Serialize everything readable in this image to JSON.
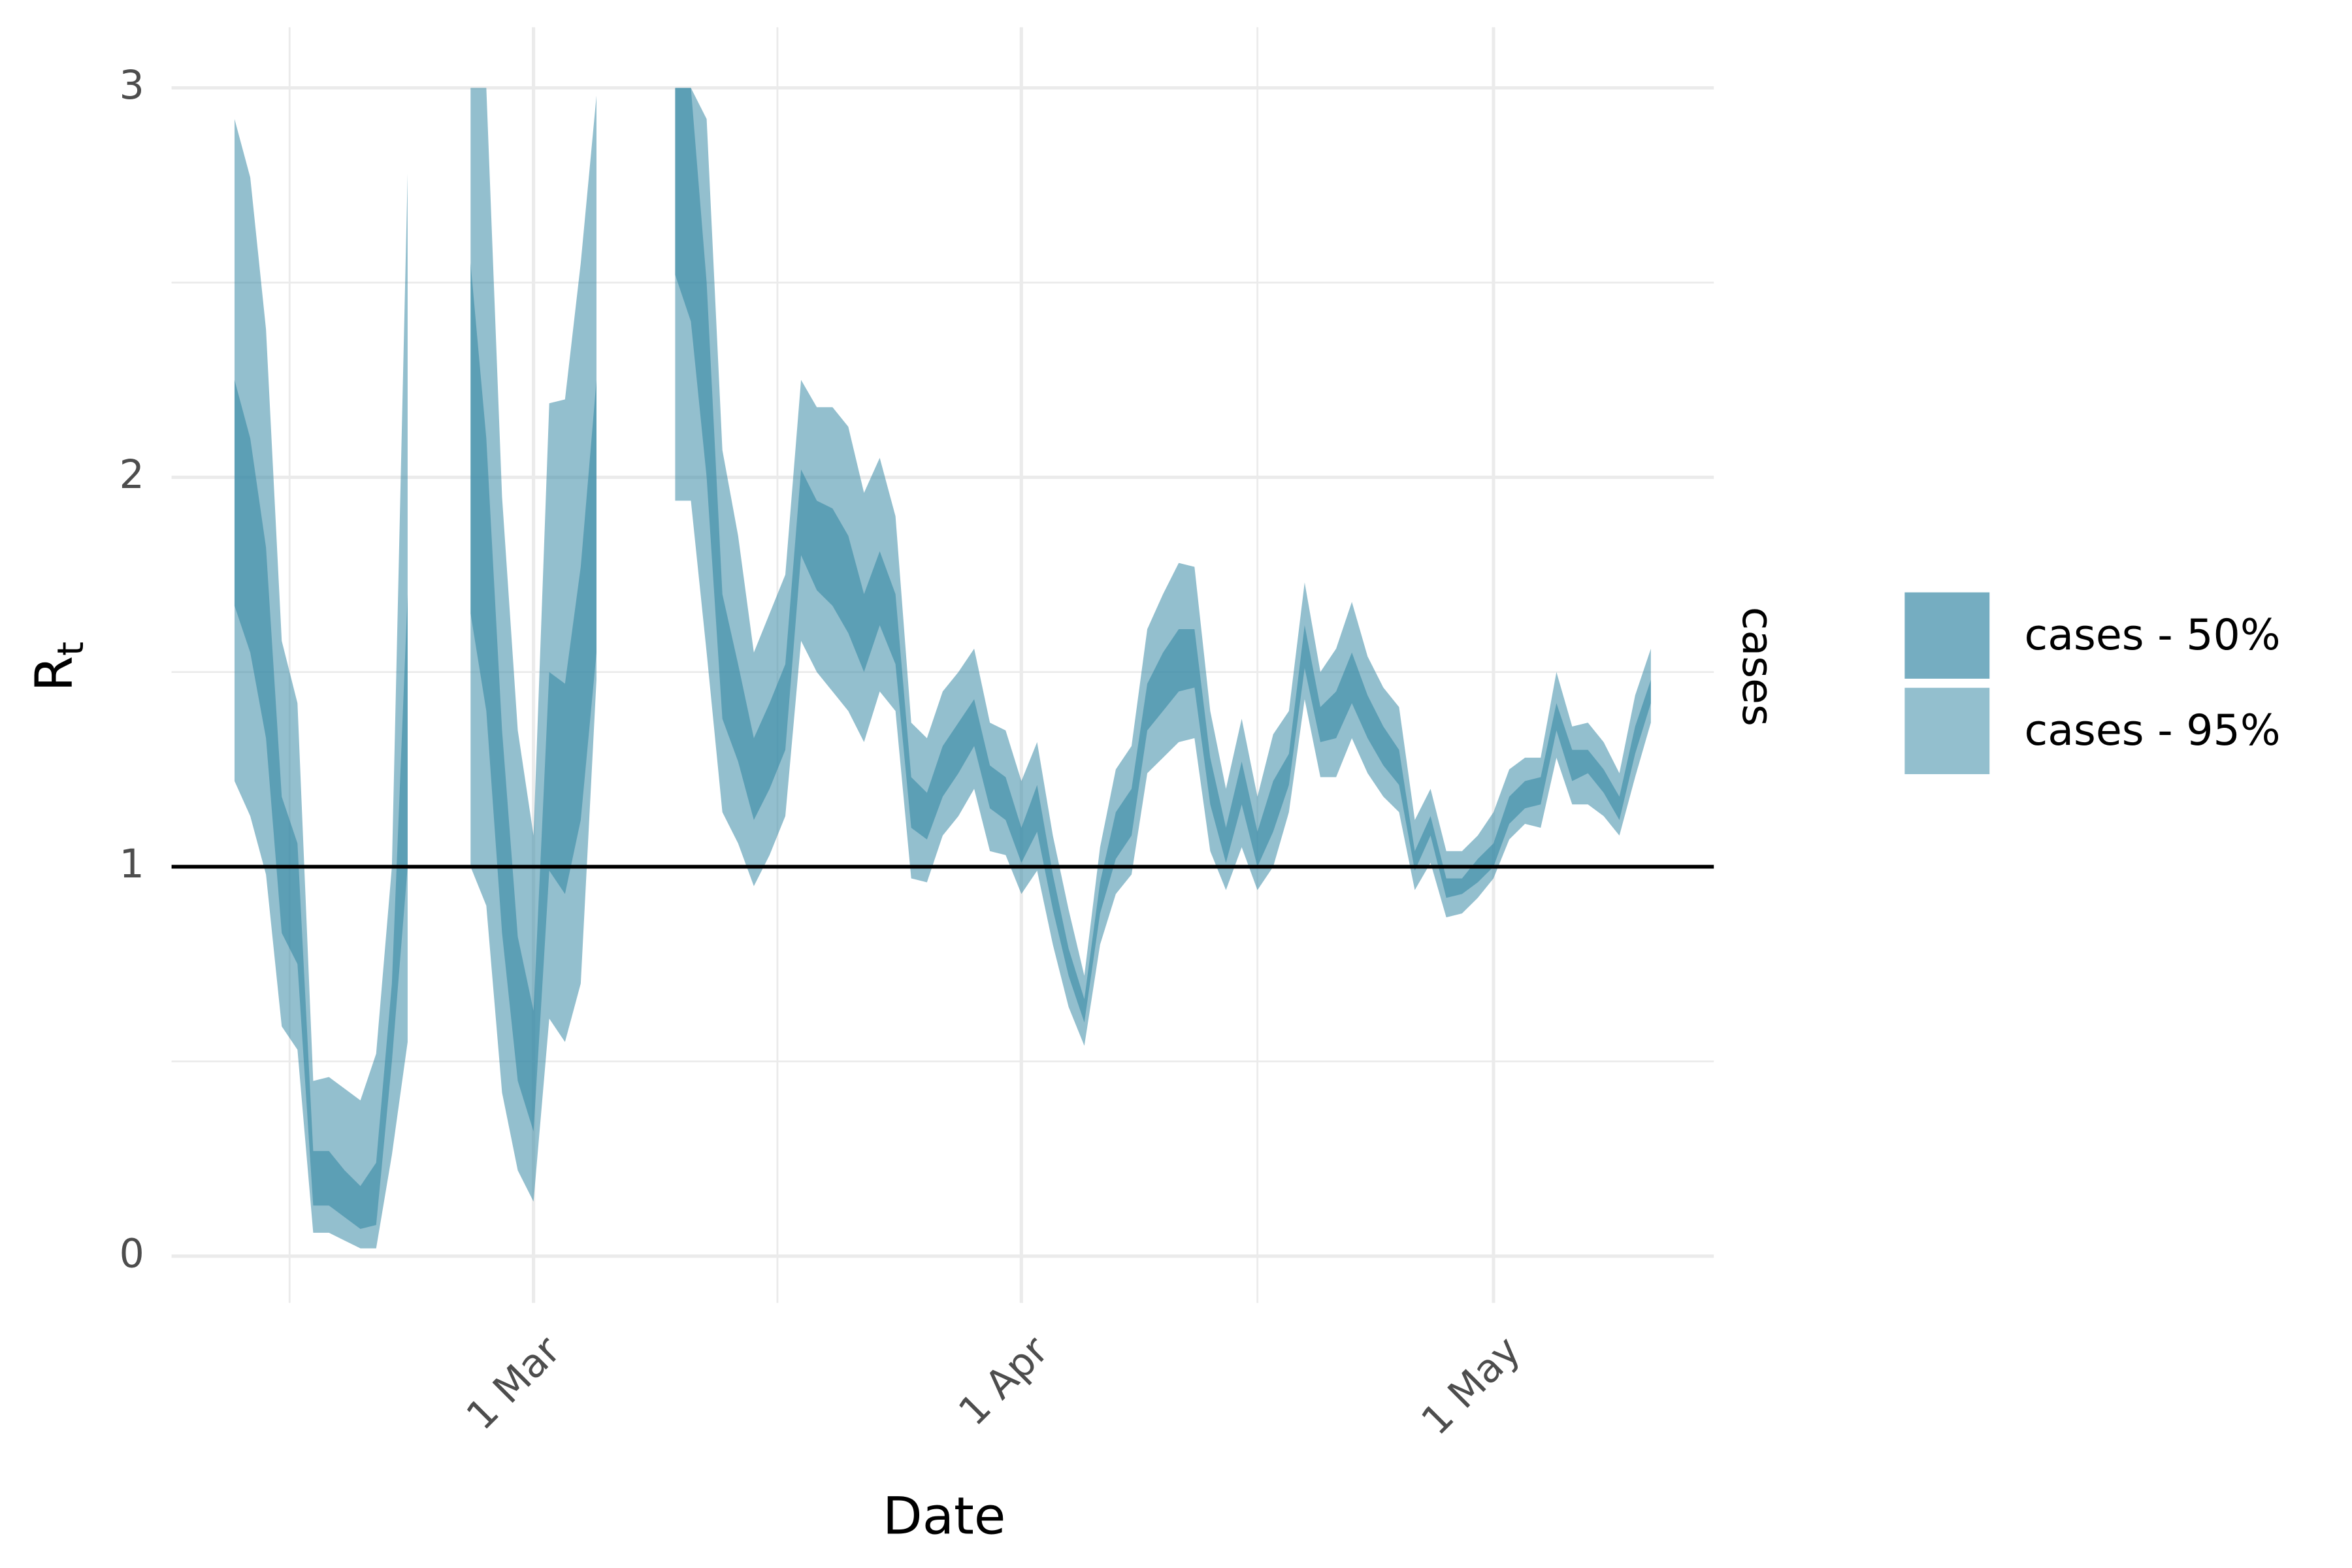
{
  "chart_data": {
    "type": "ribbon",
    "xlabel": "Date",
    "ylabel": "R",
    "ylabel_sub": "t",
    "strip": "cases",
    "xlim": [
      "6 Feb",
      "15 May"
    ],
    "xticks": [
      "1 Mar",
      "1 Apr",
      "1 May"
    ],
    "ylim": [
      -0.12,
      3
    ],
    "yticks": [
      0,
      1,
      2,
      3
    ],
    "hline": 1,
    "grid": true,
    "x": [
      "10 Feb",
      "11 Feb",
      "12 Feb",
      "13 Feb",
      "14 Feb",
      "15 Feb",
      "16 Feb",
      "17 Feb",
      "18 Feb",
      "19 Feb",
      "20 Feb",
      "21 Feb",
      "22 Feb",
      "23 Feb",
      "24 Feb",
      "25 Feb",
      "26 Feb",
      "27 Feb",
      "28 Feb",
      "1 Mar",
      "2 Mar",
      "3 Mar",
      "4 Mar",
      "5 Mar",
      "6 Mar",
      "7 Mar",
      "8 Mar",
      "9 Mar",
      "10 Mar",
      "11 Mar",
      "12 Mar",
      "13 Mar",
      "14 Mar",
      "15 Mar",
      "16 Mar",
      "17 Mar",
      "18 Mar",
      "19 Mar",
      "20 Mar",
      "21 Mar",
      "22 Mar",
      "23 Mar",
      "24 Mar",
      "25 Mar",
      "26 Mar",
      "27 Mar",
      "28 Mar",
      "29 Mar",
      "30 Mar",
      "31 Mar",
      "1 Apr",
      "2 Apr",
      "3 Apr",
      "4 Apr",
      "5 Apr",
      "6 Apr",
      "7 Apr",
      "8 Apr",
      "9 Apr",
      "10 Apr",
      "11 Apr",
      "12 Apr",
      "13 Apr",
      "14 Apr",
      "15 Apr",
      "16 Apr",
      "17 Apr",
      "18 Apr",
      "19 Apr",
      "20 Apr",
      "21 Apr",
      "22 Apr",
      "23 Apr",
      "24 Apr",
      "25 Apr",
      "26 Apr",
      "27 Apr",
      "28 Apr",
      "29 Apr",
      "30 Apr",
      "1 May",
      "2 May",
      "3 May",
      "4 May",
      "5 May",
      "6 May",
      "7 May",
      "8 May",
      "9 May",
      "10 May",
      "11 May"
    ],
    "series": [
      {
        "name": "cases - 50%",
        "color": "#3a8aa6",
        "upper": [
          2.25,
          2.1,
          1.82,
          1.18,
          1.06,
          0.27,
          0.27,
          0.22,
          0.18,
          0.24,
          0.7,
          1.7,
          null,
          null,
          null,
          2.55,
          2.1,
          1.35,
          0.82,
          0.63,
          1.5,
          1.47,
          1.77,
          2.25,
          null,
          null,
          null,
          null,
          3,
          3,
          2.5,
          1.7,
          1.52,
          1.33,
          1.42,
          1.52,
          2.02,
          1.94,
          1.92,
          1.85,
          1.7,
          1.81,
          1.7,
          1.23,
          1.19,
          1.31,
          1.37,
          1.43,
          1.26,
          1.23,
          1.1,
          1.21,
          0.98,
          0.79,
          0.66,
          0.96,
          1.14,
          1.2,
          1.47,
          1.55,
          1.61,
          1.61,
          1.28,
          1.1,
          1.27,
          1.09,
          1.22,
          1.29,
          1.62,
          1.41,
          1.45,
          1.55,
          1.44,
          1.36,
          1.3,
          1.04,
          1.13,
          0.97,
          0.97,
          1.02,
          1.06,
          1.18,
          1.22,
          1.23,
          1.42,
          1.3,
          1.3,
          1.25,
          1.18,
          1.36,
          1.48
        ],
        "lower": [
          1.67,
          1.55,
          1.33,
          0.83,
          0.75,
          0.13,
          0.13,
          0.1,
          0.07,
          0.08,
          0.5,
          1.0,
          null,
          null,
          null,
          1.65,
          1.4,
          0.83,
          0.45,
          0.32,
          0.99,
          0.93,
          1.12,
          1.55,
          null,
          null,
          null,
          null,
          2.52,
          2.4,
          2.0,
          1.38,
          1.27,
          1.12,
          1.2,
          1.3,
          1.8,
          1.71,
          1.67,
          1.6,
          1.5,
          1.62,
          1.52,
          1.1,
          1.07,
          1.18,
          1.24,
          1.31,
          1.15,
          1.12,
          1.01,
          1.09,
          0.89,
          0.72,
          0.6,
          0.88,
          1.02,
          1.08,
          1.35,
          1.4,
          1.45,
          1.46,
          1.16,
          1.01,
          1.16,
          1.0,
          1.09,
          1.21,
          1.51,
          1.32,
          1.33,
          1.42,
          1.33,
          1.26,
          1.21,
          0.99,
          1.08,
          0.92,
          0.93,
          0.96,
          1.0,
          1.11,
          1.15,
          1.16,
          1.35,
          1.22,
          1.24,
          1.19,
          1.12,
          1.29,
          1.42
        ]
      },
      {
        "name": "cases - 95%",
        "color": "#3a8aa6",
        "upper": [
          2.92,
          2.77,
          2.38,
          1.58,
          1.42,
          0.45,
          0.46,
          0.43,
          0.4,
          0.52,
          1.0,
          2.78,
          null,
          null,
          null,
          3,
          3,
          1.95,
          1.35,
          1.08,
          2.19,
          2.2,
          2.55,
          2.98,
          null,
          null,
          null,
          null,
          3,
          3,
          2.92,
          2.07,
          1.85,
          1.55,
          1.65,
          1.75,
          2.25,
          2.18,
          2.18,
          2.13,
          1.96,
          2.05,
          1.9,
          1.37,
          1.33,
          1.45,
          1.5,
          1.56,
          1.37,
          1.35,
          1.22,
          1.32,
          1.08,
          0.89,
          0.72,
          1.05,
          1.25,
          1.31,
          1.61,
          1.7,
          1.78,
          1.77,
          1.4,
          1.2,
          1.38,
          1.18,
          1.34,
          1.4,
          1.73,
          1.5,
          1.56,
          1.68,
          1.54,
          1.46,
          1.41,
          1.12,
          1.2,
          1.04,
          1.04,
          1.08,
          1.14,
          1.25,
          1.28,
          1.28,
          1.5,
          1.36,
          1.37,
          1.32,
          1.24,
          1.44,
          1.56
        ],
        "lower": [
          1.22,
          1.13,
          0.98,
          0.59,
          0.53,
          0.06,
          0.06,
          0.04,
          0.02,
          0.02,
          0.26,
          0.55,
          null,
          null,
          null,
          1.0,
          0.9,
          0.42,
          0.22,
          0.14,
          0.61,
          0.55,
          0.7,
          1.48,
          null,
          null,
          null,
          null,
          1.94,
          1.94,
          1.55,
          1.14,
          1.06,
          0.95,
          1.03,
          1.13,
          1.58,
          1.5,
          1.45,
          1.4,
          1.32,
          1.45,
          1.4,
          0.97,
          0.96,
          1.08,
          1.13,
          1.2,
          1.04,
          1.03,
          0.93,
          0.99,
          0.8,
          0.64,
          0.54,
          0.8,
          0.93,
          0.98,
          1.24,
          1.28,
          1.32,
          1.33,
          1.04,
          0.94,
          1.05,
          0.94,
          1.0,
          1.14,
          1.43,
          1.23,
          1.23,
          1.33,
          1.24,
          1.18,
          1.14,
          0.94,
          1.01,
          0.87,
          0.88,
          0.92,
          0.97,
          1.07,
          1.11,
          1.1,
          1.28,
          1.16,
          1.16,
          1.13,
          1.08,
          1.23,
          1.37
        ]
      }
    ]
  }
}
